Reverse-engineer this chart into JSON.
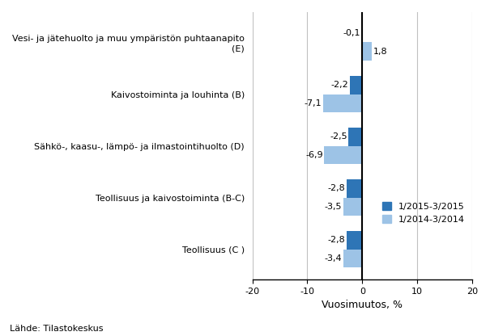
{
  "categories": [
    "Vesi- ja jätehuolto ja muu ympäristön puhtaanapito\n(E)",
    "Kaivostoiminta ja louhinta (B)",
    "Sähkö-, kaasu-, lämpö- ja ilmastointihuolto (D)",
    "Teollisuus ja kaivostoiminta (B-C)",
    "Teollisuus (C )"
  ],
  "series1_label": "1/2015-3/2015",
  "series2_label": "1/2014-3/2014",
  "series1_values": [
    -0.1,
    -2.2,
    -2.5,
    -2.8,
    -2.8
  ],
  "series2_values": [
    1.8,
    -7.1,
    -6.9,
    -3.5,
    -3.4
  ],
  "series1_color": "#2E75B6",
  "series2_color": "#9DC3E6",
  "series1_labels": [
    "-0,1",
    "-2,2",
    "-2,5",
    "-2,8",
    "-2,8"
  ],
  "series2_labels": [
    "1,8",
    "-7,1",
    "-6,9",
    "-3,5",
    "-3,4"
  ],
  "xlim": [
    -20,
    20
  ],
  "xticks": [
    -20,
    -10,
    0,
    10,
    20
  ],
  "xlabel": "Vuosimuutos, %",
  "source": "Lähde: Tilastokeskus",
  "bar_height": 0.35,
  "background_color": "#ffffff",
  "grid_color": "#c0c0c0"
}
